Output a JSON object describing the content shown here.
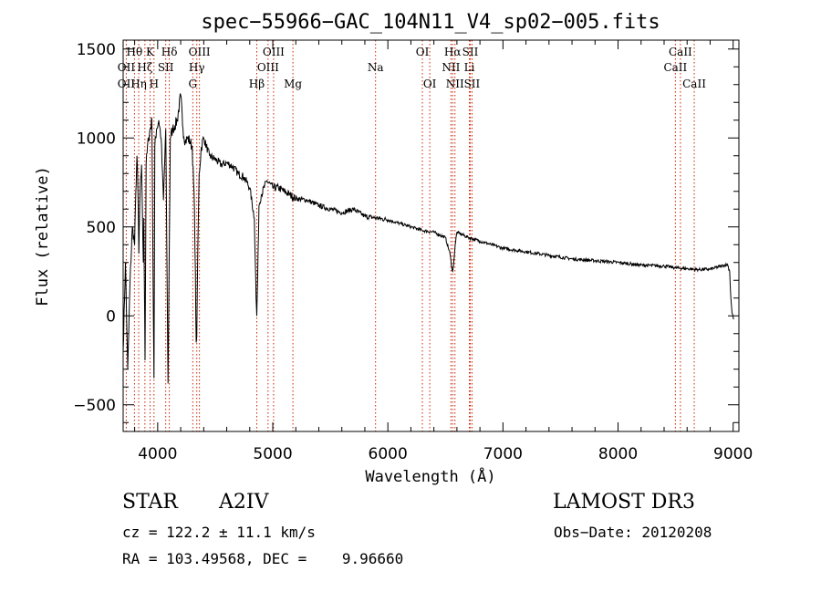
{
  "chart_data": {
    "type": "line",
    "title": "spec−55966−GAC_104N11_V4_sp02−005.fits",
    "xlabel": "Wavelength (Å)",
    "ylabel": "Flux (relative)",
    "xlim": [
      3700,
      9050
    ],
    "ylim": [
      -650,
      1550
    ],
    "xticks": [
      4000,
      5000,
      6000,
      7000,
      8000,
      9000
    ],
    "yticks": [
      -500,
      0,
      500,
      1000,
      1500
    ],
    "grid": false,
    "spectrum": {
      "name": "flux",
      "x": [
        3700,
        3720,
        3740,
        3760,
        3780,
        3800,
        3810,
        3820,
        3830,
        3836,
        3845,
        3860,
        3875,
        3880,
        3890,
        3900,
        3920,
        3950,
        3960,
        3968,
        3975,
        3990,
        4010,
        4030,
        4050,
        4070,
        4090,
        4101,
        4110,
        4130,
        4150,
        4170,
        4200,
        4220,
        4240,
        4260,
        4280,
        4300,
        4320,
        4335,
        4340,
        4345,
        4360,
        4380,
        4400,
        4450,
        4500,
        4550,
        4600,
        4650,
        4700,
        4750,
        4800,
        4840,
        4855,
        4861,
        4868,
        4880,
        4900,
        4950,
        5000,
        5050,
        5100,
        5150,
        5200,
        5300,
        5400,
        5500,
        5600,
        5700,
        5800,
        5900,
        6000,
        6100,
        6200,
        6300,
        6400,
        6500,
        6540,
        6556,
        6563,
        6570,
        6585,
        6600,
        6700,
        6800,
        6900,
        7000,
        7200,
        7400,
        7600,
        7800,
        8000,
        8200,
        8400,
        8500,
        8600,
        8700,
        8800,
        8900,
        8950,
        8970,
        8980,
        8990,
        9000,
        9005
      ],
      "y": [
        -200,
        300,
        -300,
        200,
        500,
        400,
        700,
        900,
        650,
        350,
        650,
        850,
        300,
        550,
        -250,
        850,
        1000,
        1100,
        200,
        -350,
        950,
        1050,
        1100,
        1000,
        650,
        1050,
        -380,
        400,
        1000,
        1050,
        1070,
        1100,
        1240,
        1050,
        980,
        1000,
        980,
        950,
        600,
        -150,
        -120,
        200,
        800,
        950,
        1000,
        900,
        880,
        850,
        860,
        840,
        800,
        780,
        720,
        550,
        100,
        0,
        200,
        620,
        680,
        760,
        720,
        720,
        700,
        680,
        660,
        650,
        620,
        600,
        580,
        600,
        560,
        550,
        540,
        520,
        500,
        480,
        470,
        440,
        350,
        270,
        250,
        280,
        400,
        470,
        440,
        420,
        400,
        380,
        360,
        340,
        320,
        310,
        300,
        285,
        280,
        270,
        265,
        260,
        262,
        280,
        290,
        250,
        100,
        20,
        -10,
        -20
      ]
    },
    "line_labels": [
      {
        "text": "Hθ",
        "wavelength": 3798,
        "row": 0
      },
      {
        "text": "OII",
        "wavelength": 3727,
        "row": 1
      },
      {
        "text": "OII",
        "wavelength": 3727,
        "row": 2
      },
      {
        "text": "Hη",
        "wavelength": 3835,
        "row": 2
      },
      {
        "text": "Hζ",
        "wavelength": 3889,
        "row": 1
      },
      {
        "text": "K",
        "wavelength": 3934,
        "row": 0
      },
      {
        "text": "SII",
        "wavelength": 4070,
        "row": 1
      },
      {
        "text": "H",
        "wavelength": 3968,
        "row": 2
      },
      {
        "text": "Hδ",
        "wavelength": 4101,
        "row": 0
      },
      {
        "text": "OIII",
        "wavelength": 4363,
        "row": 0
      },
      {
        "text": "Hγ",
        "wavelength": 4340,
        "row": 1
      },
      {
        "text": "G",
        "wavelength": 4305,
        "row": 2
      },
      {
        "text": "Hβ",
        "wavelength": 4861,
        "row": 2
      },
      {
        "text": "OIII",
        "wavelength": 5007,
        "row": 0
      },
      {
        "text": "OIII",
        "wavelength": 4959,
        "row": 1
      },
      {
        "text": "Mg",
        "wavelength": 5175,
        "row": 2
      },
      {
        "text": "Na",
        "wavelength": 5893,
        "row": 1
      },
      {
        "text": "OI",
        "wavelength": 6300,
        "row": 0
      },
      {
        "text": "OI",
        "wavelength": 6364,
        "row": 2
      },
      {
        "text": "Hα",
        "wavelength": 6563,
        "row": 0
      },
      {
        "text": "NII",
        "wavelength": 6548,
        "row": 1
      },
      {
        "text": "NII",
        "wavelength": 6583,
        "row": 2
      },
      {
        "text": "SII",
        "wavelength": 6716,
        "row": 0
      },
      {
        "text": "Li",
        "wavelength": 6708,
        "row": 1
      },
      {
        "text": "SII",
        "wavelength": 6731,
        "row": 2
      },
      {
        "text": "CaII",
        "wavelength": 8542,
        "row": 0
      },
      {
        "text": "CaII",
        "wavelength": 8498,
        "row": 1
      },
      {
        "text": "CaII",
        "wavelength": 8662,
        "row": 2
      }
    ],
    "marker_lines": [
      3727,
      3798,
      3835,
      3889,
      3934,
      3968,
      4070,
      4101,
      4305,
      4340,
      4363,
      4861,
      4959,
      5007,
      5175,
      5893,
      6300,
      6364,
      6548,
      6563,
      6583,
      6708,
      6716,
      6731,
      8498,
      8542,
      8662
    ],
    "colors": {
      "spectrum": "#000000",
      "markers": "#cc2200",
      "axes": "#000000"
    }
  },
  "info": {
    "object_class": "STAR",
    "subclass": "A2IV",
    "redshift": "cz = 122.2 ± 11.1 km/s",
    "coords": "RA = 103.49568, DEC =    9.96660",
    "survey": "LAMOST DR3",
    "obs_date": "Obs−Date: 20120208"
  }
}
